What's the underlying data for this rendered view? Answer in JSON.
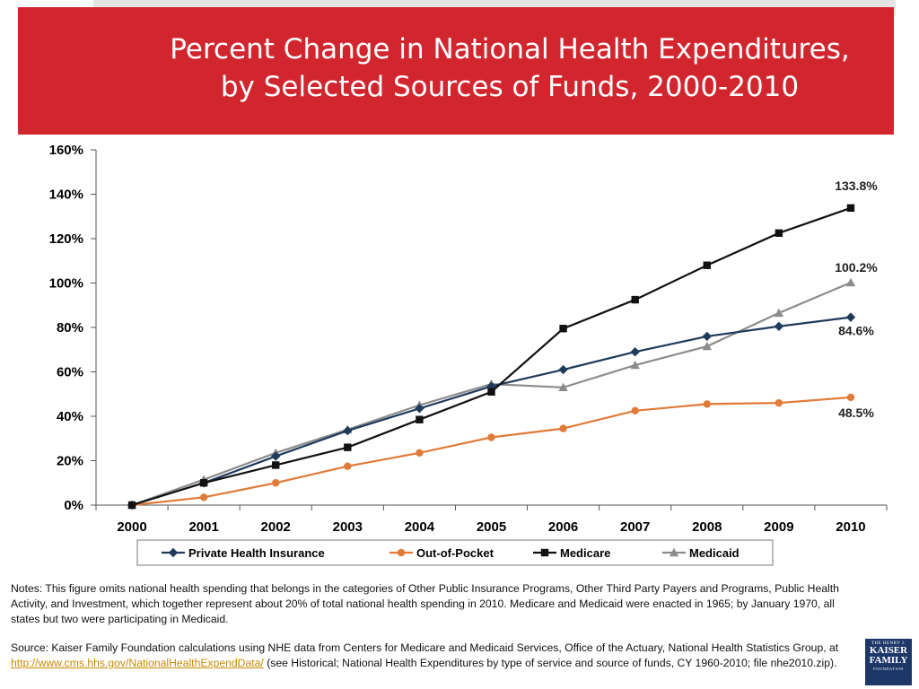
{
  "header": {
    "title_line1": "Percent Change in National Health Expenditures,",
    "title_line2": "by Selected Sources of Funds, 2000-2010"
  },
  "chart_data": {
    "type": "line",
    "title": "Percent Change in National Health Expenditures, by Selected Sources of Funds, 2000-2010",
    "xlabel": "",
    "ylabel": "",
    "x": [
      "2000",
      "2001",
      "2002",
      "2003",
      "2004",
      "2005",
      "2006",
      "2007",
      "2008",
      "2009",
      "2010"
    ],
    "ylim": [
      0,
      160
    ],
    "yticks": [
      0,
      20,
      40,
      60,
      80,
      100,
      120,
      140,
      160
    ],
    "ytick_labels": [
      "0%",
      "20%",
      "40%",
      "60%",
      "80%",
      "100%",
      "120%",
      "140%",
      "160%"
    ],
    "grid": false,
    "legend_position": "bottom",
    "series": [
      {
        "name": "Private Health Insurance",
        "color": "#1f3b5c",
        "marker": "diamond",
        "values": [
          0,
          10,
          22,
          33.5,
          43.5,
          53.5,
          61,
          69,
          76,
          80.5,
          84.6
        ],
        "end_label": "84.6%"
      },
      {
        "name": "Out-of-Pocket",
        "color": "#e07b39",
        "marker": "circle",
        "values": [
          0,
          3.5,
          10,
          17.5,
          23.5,
          30.5,
          34.5,
          42.5,
          45.5,
          46,
          48.5
        ],
        "end_label": "48.5%"
      },
      {
        "name": "Medicare",
        "color": "#111111",
        "marker": "square",
        "values": [
          0,
          10,
          18,
          26,
          38.5,
          51,
          79.5,
          92.5,
          108,
          122.5,
          133.8
        ],
        "end_label": "133.8%"
      },
      {
        "name": "Medicaid",
        "color": "#8c8c8c",
        "marker": "triangle",
        "values": [
          0,
          11.5,
          23.5,
          34,
          45,
          54.5,
          53,
          63,
          71.5,
          86.5,
          100.2
        ],
        "end_label": "100.2%"
      }
    ]
  },
  "footer": {
    "notes": "Notes: This figure omits national health spending that belongs in the categories of Other Public Insurance Programs, Other Third Party Payers and Programs, Public Health Activity, and Investment, which together represent about 20% of total national health spending in 2010. Medicare and Medicaid were enacted in 1965; by January 1970, all states but two were participating in Medicaid.",
    "source_prefix": "Source: Kaiser Family Foundation calculations using NHE data from Centers for Medicare and Medicaid Services, Office of the Actuary, National Health Statistics Group, at ",
    "source_link": "http://www.cms.hhs.gov/NationalHealthExpendData/",
    "source_suffix": " (see Historical; National Health Expenditures by type of service and source of funds, CY 1960-2010; file nhe2010.zip)."
  },
  "logo": {
    "top": "THE HENRY J.",
    "line1": "KAISER",
    "line2": "FAMILY",
    "bottom": "FOUNDATION",
    "color": "#1c3768"
  }
}
